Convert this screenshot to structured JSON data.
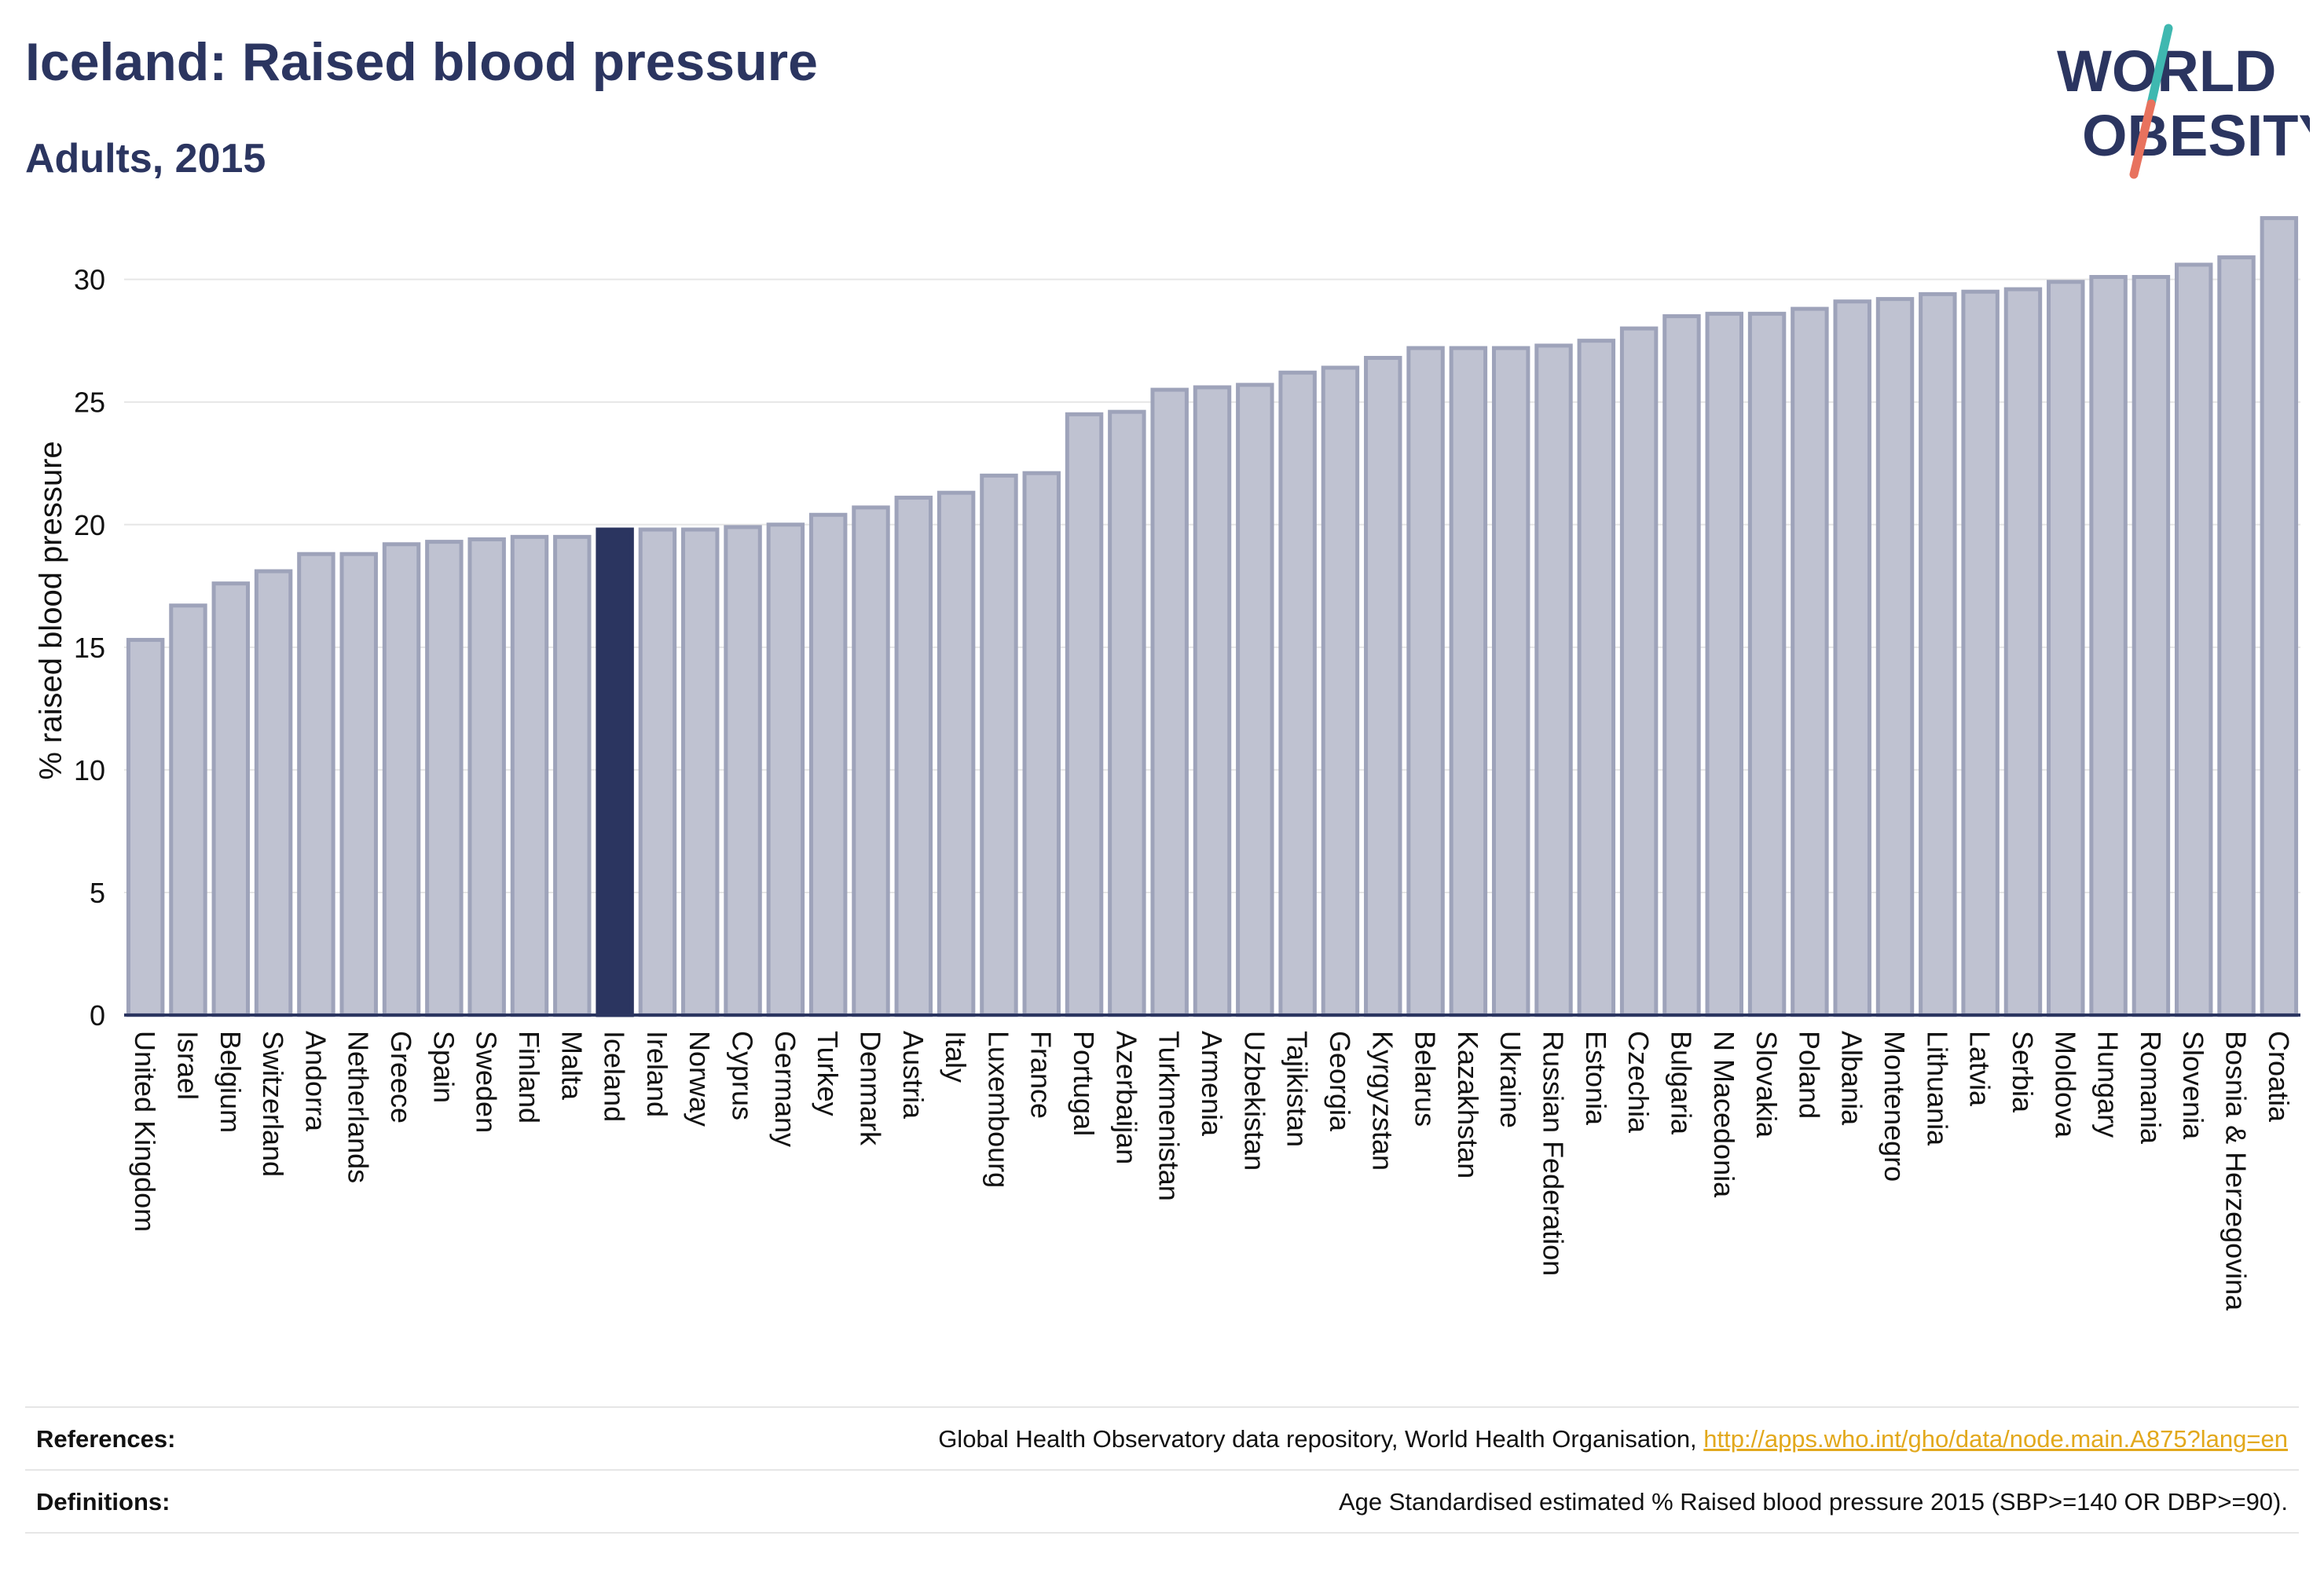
{
  "header": {
    "title": "Iceland: Raised blood pressure",
    "subtitle": "Adults, 2015"
  },
  "logo": {
    "line1": "WORLD",
    "line2": "OBESITY",
    "colors": {
      "text": "#2b3560",
      "slash_teal": "#3fb8b0",
      "slash_red": "#e8725e"
    }
  },
  "footer": {
    "references_label": "References:",
    "references_text": "Global Health Observatory data repository, World Health Organisation, ",
    "references_link": "http://apps.who.int/gho/data/node.main.A875?lang=en",
    "definitions_label": "Definitions:",
    "definitions_text": "Age Standardised estimated % Raised blood pressure 2015 (SBP>=140 OR DBP>=90)."
  },
  "chart_data": {
    "type": "bar",
    "title": "Iceland: Raised blood pressure",
    "subtitle": "Adults, 2015",
    "xlabel": "",
    "ylabel": "% raised blood pressure",
    "ylim": [
      0,
      33
    ],
    "yticks": [
      0,
      5,
      10,
      15,
      20,
      25,
      30
    ],
    "grid": true,
    "highlight": "Iceland",
    "colors": {
      "bar": "#bfc2d1",
      "bar_edge": "#9ea3ba",
      "highlight": "#2b3560",
      "grid": "#e6e6e6",
      "axis": "#2b3560"
    },
    "categories": [
      "United Kingdom",
      "Israel",
      "Belgium",
      "Switzerland",
      "Andorra",
      "Netherlands",
      "Greece",
      "Spain",
      "Sweden",
      "Finland",
      "Malta",
      "Iceland",
      "Ireland",
      "Norway",
      "Cyprus",
      "Germany",
      "Turkey",
      "Denmark",
      "Austria",
      "Italy",
      "Luxembourg",
      "France",
      "Portugal",
      "Azerbaijan",
      "Turkmenistan",
      "Armenia",
      "Uzbekistan",
      "Tajikistan",
      "Georgia",
      "Kyrgyzstan",
      "Belarus",
      "Kazakhstan",
      "Ukraine",
      "Russian Federation",
      "Estonia",
      "Czechia",
      "Bulgaria",
      "N Macedonia",
      "Slovakia",
      "Poland",
      "Albania",
      "Montenegro",
      "Lithuania",
      "Latvia",
      "Serbia",
      "Moldova",
      "Hungary",
      "Romania",
      "Slovenia",
      "Bosnia & Herzegovina",
      "Croatia"
    ],
    "values": [
      15.3,
      16.7,
      17.6,
      18.1,
      18.8,
      18.8,
      19.2,
      19.3,
      19.4,
      19.5,
      19.5,
      19.8,
      19.8,
      19.8,
      19.9,
      20.0,
      20.4,
      20.7,
      21.1,
      21.3,
      22.0,
      22.1,
      24.5,
      24.6,
      25.5,
      25.6,
      25.7,
      26.2,
      26.4,
      26.8,
      27.2,
      27.2,
      27.2,
      27.3,
      27.5,
      28.0,
      28.5,
      28.6,
      28.6,
      28.8,
      29.1,
      29.2,
      29.4,
      29.5,
      29.6,
      29.9,
      30.1,
      30.1,
      30.6,
      30.9,
      32.5
    ]
  }
}
